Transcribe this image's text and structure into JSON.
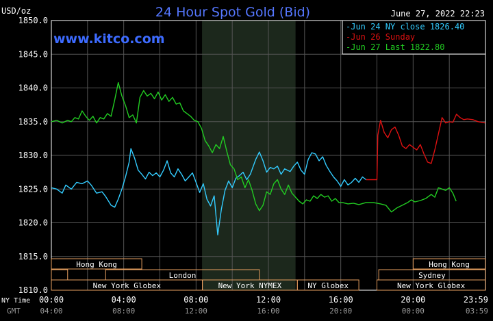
{
  "chart_data": {
    "type": "line",
    "title": "24 Hour Spot Gold (Bid)",
    "timestamp": "June 27, 2022 22:23",
    "website": "www.kitco.com",
    "ylabel": "USD/oz",
    "ylim": [
      1810,
      1850
    ],
    "ytick_labels": [
      "1850.0",
      "1845.0",
      "1840.0",
      "1835.0",
      "1830.0",
      "1825.0",
      "1820.0",
      "1815.0",
      "1810.0"
    ],
    "xlim": [
      0,
      24
    ],
    "x_row_label_ny": "NY Time",
    "x_row_label_gmt": "GMT",
    "ny_time_ticks": [
      "00:00",
      "04:00",
      "08:00",
      "12:00",
      "16:00",
      "20:00",
      "23:59"
    ],
    "gmt_ticks": [
      "04:00",
      "08:00",
      "12:00",
      "16:00",
      "20:00",
      "00:00",
      "03:59"
    ],
    "nymex_shade_hours": [
      8.33,
      13.5
    ],
    "grid": true,
    "legend_position": "top-right",
    "series": [
      {
        "name": "Jun 24 NY close 1826.40",
        "color": "#33ccff",
        "points": [
          [
            0.0,
            1825.2
          ],
          [
            0.3,
            1825.0
          ],
          [
            0.6,
            1824.4
          ],
          [
            0.8,
            1825.6
          ],
          [
            1.1,
            1825.0
          ],
          [
            1.4,
            1826.0
          ],
          [
            1.7,
            1825.8
          ],
          [
            2.0,
            1826.2
          ],
          [
            2.2,
            1825.6
          ],
          [
            2.5,
            1824.4
          ],
          [
            2.8,
            1824.6
          ],
          [
            3.0,
            1823.9
          ],
          [
            3.3,
            1822.6
          ],
          [
            3.5,
            1822.3
          ],
          [
            3.7,
            1823.5
          ],
          [
            3.9,
            1825.0
          ],
          [
            4.1,
            1826.8
          ],
          [
            4.3,
            1829.0
          ],
          [
            4.4,
            1831.0
          ],
          [
            4.6,
            1829.6
          ],
          [
            4.8,
            1827.8
          ],
          [
            5.0,
            1827.2
          ],
          [
            5.2,
            1826.5
          ],
          [
            5.4,
            1827.5
          ],
          [
            5.6,
            1827.0
          ],
          [
            5.8,
            1827.4
          ],
          [
            6.0,
            1826.8
          ],
          [
            6.2,
            1827.8
          ],
          [
            6.4,
            1829.2
          ],
          [
            6.6,
            1827.4
          ],
          [
            6.8,
            1826.8
          ],
          [
            7.0,
            1828.0
          ],
          [
            7.2,
            1827.2
          ],
          [
            7.4,
            1826.2
          ],
          [
            7.6,
            1826.8
          ],
          [
            7.8,
            1827.4
          ],
          [
            8.0,
            1826.0
          ],
          [
            8.2,
            1824.5
          ],
          [
            8.4,
            1825.8
          ],
          [
            8.6,
            1823.5
          ],
          [
            8.8,
            1822.5
          ],
          [
            9.0,
            1824.0
          ],
          [
            9.2,
            1818.2
          ],
          [
            9.4,
            1822.0
          ],
          [
            9.6,
            1824.8
          ],
          [
            9.8,
            1826.2
          ],
          [
            10.0,
            1825.2
          ],
          [
            10.2,
            1826.6
          ],
          [
            10.4,
            1827.0
          ],
          [
            10.6,
            1827.5
          ],
          [
            10.8,
            1826.4
          ],
          [
            11.0,
            1827.2
          ],
          [
            11.3,
            1829.4
          ],
          [
            11.5,
            1830.5
          ],
          [
            11.7,
            1829.2
          ],
          [
            11.9,
            1827.5
          ],
          [
            12.1,
            1828.2
          ],
          [
            12.3,
            1828.0
          ],
          [
            12.5,
            1828.4
          ],
          [
            12.7,
            1827.2
          ],
          [
            12.9,
            1828.0
          ],
          [
            13.2,
            1827.6
          ],
          [
            13.4,
            1828.4
          ],
          [
            13.6,
            1829.0
          ],
          [
            13.8,
            1827.8
          ],
          [
            14.0,
            1827.2
          ],
          [
            14.2,
            1829.4
          ],
          [
            14.4,
            1830.4
          ],
          [
            14.6,
            1830.2
          ],
          [
            14.8,
            1829.2
          ],
          [
            15.0,
            1829.8
          ],
          [
            15.2,
            1828.5
          ],
          [
            15.4,
            1827.6
          ],
          [
            15.6,
            1826.8
          ],
          [
            15.8,
            1826.2
          ],
          [
            16.0,
            1825.4
          ],
          [
            16.2,
            1826.4
          ],
          [
            16.4,
            1825.6
          ],
          [
            16.6,
            1826.0
          ],
          [
            16.8,
            1826.6
          ],
          [
            17.0,
            1826.0
          ],
          [
            17.2,
            1826.8
          ],
          [
            17.4,
            1826.4
          ]
        ]
      },
      {
        "name": "Jun 26 Sunday",
        "color": "#dd1111",
        "points": [
          [
            17.4,
            1826.4
          ],
          [
            17.6,
            1826.4
          ],
          [
            18.0,
            1826.4
          ],
          [
            18.05,
            1833.0
          ],
          [
            18.2,
            1835.2
          ],
          [
            18.4,
            1833.4
          ],
          [
            18.6,
            1832.6
          ],
          [
            18.8,
            1833.8
          ],
          [
            19.0,
            1834.2
          ],
          [
            19.2,
            1833.0
          ],
          [
            19.4,
            1831.4
          ],
          [
            19.6,
            1831.0
          ],
          [
            19.8,
            1831.6
          ],
          [
            20.0,
            1831.2
          ],
          [
            20.2,
            1830.8
          ],
          [
            20.4,
            1831.6
          ],
          [
            20.6,
            1830.2
          ],
          [
            20.8,
            1829.0
          ],
          [
            21.0,
            1828.8
          ],
          [
            21.2,
            1830.8
          ],
          [
            21.4,
            1833.2
          ],
          [
            21.6,
            1835.6
          ],
          [
            21.8,
            1834.8
          ],
          [
            22.0,
            1835.0
          ],
          [
            22.2,
            1834.9
          ],
          [
            22.4,
            1836.1
          ],
          [
            22.6,
            1835.6
          ],
          [
            22.8,
            1835.3
          ],
          [
            23.0,
            1835.4
          ],
          [
            23.3,
            1835.3
          ],
          [
            23.6,
            1835.0
          ],
          [
            23.99,
            1834.8
          ]
        ]
      },
      {
        "name": "Jun 27 Last 1822.80",
        "color": "#22cc22",
        "points": [
          [
            0.0,
            1835.0
          ],
          [
            0.3,
            1835.2
          ],
          [
            0.6,
            1834.8
          ],
          [
            0.9,
            1835.2
          ],
          [
            1.1,
            1835.0
          ],
          [
            1.3,
            1835.6
          ],
          [
            1.5,
            1835.4
          ],
          [
            1.7,
            1836.6
          ],
          [
            1.9,
            1835.8
          ],
          [
            2.1,
            1835.2
          ],
          [
            2.3,
            1835.8
          ],
          [
            2.5,
            1834.8
          ],
          [
            2.7,
            1835.6
          ],
          [
            2.9,
            1835.4
          ],
          [
            3.1,
            1836.2
          ],
          [
            3.3,
            1835.8
          ],
          [
            3.5,
            1838.2
          ],
          [
            3.7,
            1840.8
          ],
          [
            3.9,
            1838.8
          ],
          [
            4.1,
            1837.4
          ],
          [
            4.3,
            1835.6
          ],
          [
            4.5,
            1836.0
          ],
          [
            4.7,
            1834.8
          ],
          [
            4.9,
            1838.6
          ],
          [
            5.1,
            1839.6
          ],
          [
            5.3,
            1838.8
          ],
          [
            5.5,
            1839.2
          ],
          [
            5.7,
            1838.4
          ],
          [
            5.9,
            1839.4
          ],
          [
            6.1,
            1838.2
          ],
          [
            6.3,
            1839.0
          ],
          [
            6.5,
            1838.0
          ],
          [
            6.7,
            1838.6
          ],
          [
            6.9,
            1837.6
          ],
          [
            7.1,
            1837.8
          ],
          [
            7.3,
            1836.6
          ],
          [
            7.5,
            1836.2
          ],
          [
            7.7,
            1835.8
          ],
          [
            7.9,
            1835.2
          ],
          [
            8.1,
            1835.0
          ],
          [
            8.3,
            1834.0
          ],
          [
            8.5,
            1832.2
          ],
          [
            8.7,
            1831.4
          ],
          [
            8.9,
            1830.4
          ],
          [
            9.1,
            1831.6
          ],
          [
            9.3,
            1831.0
          ],
          [
            9.5,
            1832.8
          ],
          [
            9.7,
            1830.6
          ],
          [
            9.9,
            1828.6
          ],
          [
            10.1,
            1828.0
          ],
          [
            10.3,
            1826.4
          ],
          [
            10.5,
            1826.8
          ],
          [
            10.7,
            1825.2
          ],
          [
            10.9,
            1826.4
          ],
          [
            11.1,
            1824.8
          ],
          [
            11.3,
            1822.8
          ],
          [
            11.5,
            1821.8
          ],
          [
            11.7,
            1822.6
          ],
          [
            11.9,
            1824.6
          ],
          [
            12.1,
            1824.2
          ],
          [
            12.3,
            1825.8
          ],
          [
            12.5,
            1826.4
          ],
          [
            12.7,
            1825.0
          ],
          [
            12.9,
            1824.2
          ],
          [
            13.1,
            1825.6
          ],
          [
            13.3,
            1824.4
          ],
          [
            13.5,
            1823.8
          ],
          [
            13.7,
            1823.2
          ],
          [
            13.9,
            1822.8
          ],
          [
            14.1,
            1823.4
          ],
          [
            14.3,
            1823.2
          ],
          [
            14.5,
            1824.0
          ],
          [
            14.7,
            1823.6
          ],
          [
            14.9,
            1824.2
          ],
          [
            15.1,
            1823.8
          ],
          [
            15.3,
            1824.0
          ],
          [
            15.5,
            1823.2
          ],
          [
            15.7,
            1823.6
          ],
          [
            15.9,
            1823.0
          ],
          [
            16.1,
            1823.0
          ],
          [
            16.4,
            1822.8
          ],
          [
            16.7,
            1822.9
          ],
          [
            17.0,
            1822.7
          ],
          [
            17.4,
            1823.0
          ],
          [
            17.8,
            1823.0
          ],
          [
            18.2,
            1822.8
          ],
          [
            18.5,
            1822.6
          ],
          [
            18.8,
            1821.6
          ],
          [
            19.1,
            1822.2
          ],
          [
            19.4,
            1822.6
          ],
          [
            19.7,
            1823.0
          ],
          [
            19.9,
            1823.4
          ],
          [
            20.1,
            1823.1
          ],
          [
            20.4,
            1823.3
          ],
          [
            20.7,
            1823.6
          ],
          [
            21.0,
            1824.2
          ],
          [
            21.2,
            1823.8
          ],
          [
            21.4,
            1825.2
          ],
          [
            21.6,
            1825.0
          ],
          [
            21.8,
            1824.8
          ],
          [
            22.0,
            1825.2
          ],
          [
            22.2,
            1824.4
          ],
          [
            22.38,
            1823.2
          ]
        ]
      }
    ],
    "sessions": [
      {
        "label": "Hong Kong",
        "row": 0,
        "start": 0,
        "end": 5.0
      },
      {
        "label": "",
        "row": 1,
        "start": 0,
        "end": 0.9
      },
      {
        "label": "London",
        "row": 1,
        "start": 3.0,
        "end": 11.5
      },
      {
        "label": "New York Globex",
        "row": 2,
        "start": 0,
        "end": 8.35
      },
      {
        "label": "New York NYMEX",
        "row": 2,
        "start": 8.35,
        "end": 13.6
      },
      {
        "label": "NY Globex",
        "row": 2,
        "start": 13.6,
        "end": 17.0
      },
      {
        "label": "Hong Kong",
        "row": 0,
        "start": 20.0,
        "end": 23.99
      },
      {
        "label": "Sydney",
        "row": 1,
        "start": 18.1,
        "end": 23.99
      },
      {
        "label": "New York Globex",
        "row": 2,
        "start": 18.0,
        "end": 23.99
      }
    ]
  }
}
